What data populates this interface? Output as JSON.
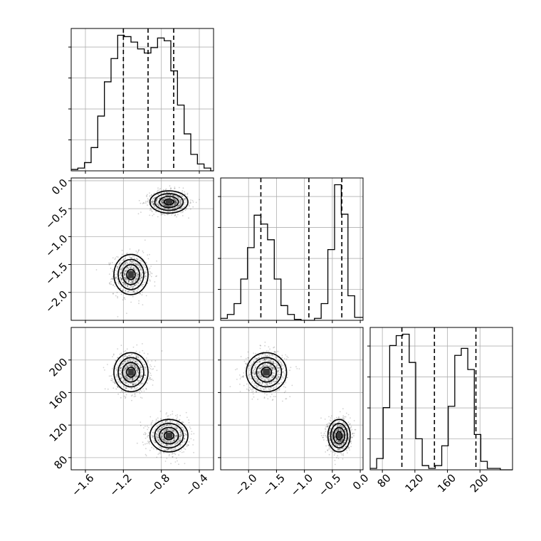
{
  "chart_data": {
    "type": "corner",
    "grid": true,
    "variables": [
      {
        "range": [
          -1.75,
          -0.25
        ],
        "ticks": [
          -1.6,
          -1.2,
          -0.8,
          -0.4
        ],
        "tick_labels": [
          "−1.6",
          "−1.2",
          "−0.8",
          "−0.4"
        ],
        "quantiles": [
          -1.2,
          -0.94,
          -0.67
        ]
      },
      {
        "range": [
          -2.5,
          0.05
        ],
        "ticks": [
          -2.0,
          -1.5,
          -1.0,
          -0.5,
          0.0
        ],
        "tick_labels": [
          "−2.0",
          "−1.5",
          "−1.0",
          "−0.5",
          "0.0"
        ],
        "quantiles": [
          -1.78,
          -0.92,
          -0.33
        ]
      },
      {
        "range": [
          65,
          240
        ],
        "ticks": [
          80,
          120,
          160,
          200
        ],
        "tick_labels": [
          "80",
          "120",
          "160",
          "200"
        ],
        "quantiles": [
          104,
          144,
          195
        ]
      }
    ],
    "histograms": [
      {
        "variable": 0,
        "bin_edges": [
          -1.75,
          -1.68,
          -1.61,
          -1.54,
          -1.47,
          -1.4,
          -1.33,
          -1.26,
          -1.19,
          -1.12,
          -1.05,
          -0.98,
          -0.91,
          -0.84,
          -0.77,
          -0.7,
          -0.63,
          -0.56,
          -0.49,
          -0.42,
          -0.35,
          -0.28,
          -0.25
        ],
        "counts": [
          1,
          2,
          6,
          17,
          40,
          65,
          82,
          99,
          98,
          94,
          89,
          86,
          90,
          97,
          95,
          73,
          48,
          27,
          12,
          5,
          2,
          0
        ]
      },
      {
        "variable": 1,
        "bin_edges": [
          -2.5,
          -2.38,
          -2.26,
          -2.14,
          -2.02,
          -1.9,
          -1.78,
          -1.66,
          -1.54,
          -1.42,
          -1.3,
          -1.18,
          -1.06,
          -0.94,
          -0.82,
          -0.7,
          -0.58,
          -0.46,
          -0.34,
          -0.22,
          -0.1,
          0.05
        ],
        "counts": [
          2,
          6,
          17,
          42,
          74,
          107,
          98,
          82,
          42,
          15,
          6,
          1,
          0,
          0,
          2,
          17,
          72,
          138,
          108,
          25,
          3
        ]
      },
      {
        "variable": 2,
        "bin_edges": [
          65,
          73,
          81,
          89,
          97,
          105,
          113,
          121,
          129,
          137,
          145,
          153,
          161,
          169,
          177,
          185,
          193,
          201,
          209,
          217,
          225,
          233,
          240
        ],
        "counts": [
          1,
          8,
          44,
          88,
          95,
          96,
          76,
          22,
          3,
          1,
          3,
          17,
          45,
          81,
          86,
          71,
          25,
          6,
          1,
          1,
          0,
          0
        ]
      }
    ],
    "scatter_pairs": [
      {
        "x": 1,
        "y": 0,
        "note": "row 1 col 0"
      },
      {
        "x": 0,
        "y": 2
      },
      {
        "x": 1,
        "y": 2
      }
    ],
    "clusters": {
      "A": {
        "v0": -1.12,
        "v1": -1.68,
        "v2": 185,
        "sd0": 0.09,
        "sd1": 0.18,
        "sd2": 12
      },
      "B": {
        "v0": -0.72,
        "v1": -0.38,
        "v2": 107,
        "sd0": 0.1,
        "sd1": 0.1,
        "sd2": 10
      }
    },
    "xlabel": "",
    "ylabel": "",
    "title": ""
  }
}
